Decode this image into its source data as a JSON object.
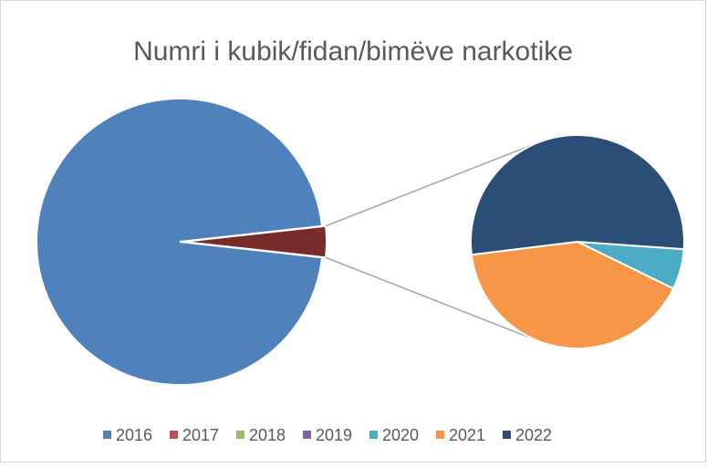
{
  "chart_data": {
    "type": "pie-of-pie",
    "title": "Numri i kubik/fidan/bimëve narkotike",
    "categories": [
      "2016",
      "2017",
      "2018",
      "2019",
      "2020",
      "2021",
      "2022"
    ],
    "values": [
      27000,
      0,
      0,
      0,
      60,
      400,
      520
    ],
    "colors": [
      "#4f81bd",
      "#c0504d",
      "#9bbb59",
      "#8064a2",
      "#4bacc6",
      "#f79646",
      "#2c4d75"
    ],
    "other_color": "#772c2a",
    "legend": "bottom"
  }
}
